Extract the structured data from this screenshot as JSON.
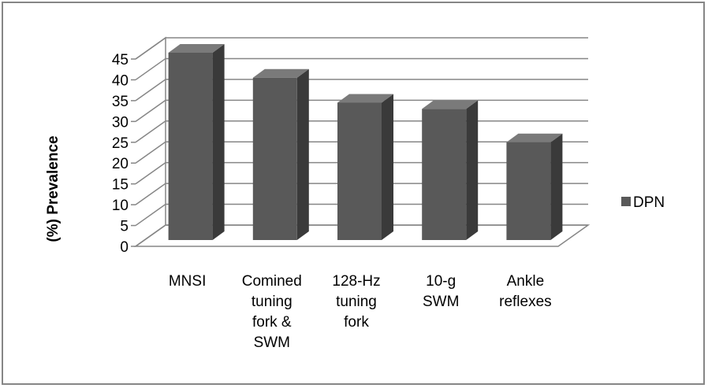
{
  "chart_data": {
    "type": "bar",
    "style": "3d-column",
    "categories": [
      [
        "MNSI"
      ],
      [
        "Comined",
        "tuning",
        "fork &",
        "SWM"
      ],
      [
        "128-Hz",
        "tuning",
        "fork"
      ],
      [
        "10-g",
        "SWM"
      ],
      [
        "Ankle",
        "reflexes"
      ]
    ],
    "series": [
      {
        "name": "DPN",
        "values": [
          45,
          39,
          33,
          31.5,
          23.5
        ]
      }
    ],
    "ylabel": "(%) Prevalence",
    "xlabel": "",
    "ylim": [
      0,
      45
    ],
    "yticks": [
      "0",
      "5",
      "10",
      "15",
      "20",
      "25",
      "30",
      "35",
      "40",
      "45"
    ],
    "grid": true,
    "legend_position": "right",
    "colors": {
      "bar_front": "#595959",
      "bar_side": "#3a3a3a",
      "bar_top": "#7a7a7a",
      "grid": "#868686"
    }
  }
}
